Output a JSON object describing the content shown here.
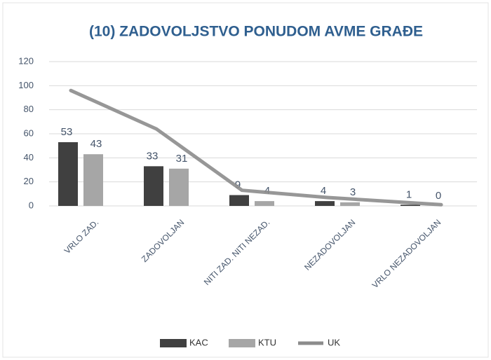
{
  "chart_data": {
    "type": "bar",
    "title": "(10) ZADOVOLJSTVO PONUDOM AVME GRAĐE",
    "categories": [
      "VRLO ZAD.",
      "ZADOVOLJAN",
      "NITI ZAD. NITI NEZAD.",
      "NEZADOVOLJAN",
      "VRLO NEZADOVOLJAN"
    ],
    "series": [
      {
        "name": "KAC",
        "type": "bar",
        "color": "#404040",
        "values": [
          53,
          33,
          9,
          4,
          1
        ]
      },
      {
        "name": "KTU",
        "type": "bar",
        "color": "#a6a6a6",
        "values": [
          43,
          31,
          4,
          3,
          0
        ]
      },
      {
        "name": "UK",
        "type": "line",
        "color": "#8c8c8c",
        "values": [
          96,
          64,
          13,
          7,
          1
        ]
      }
    ],
    "ylim": [
      0,
      120
    ],
    "yticks": [
      0,
      20,
      40,
      60,
      80,
      100,
      120
    ],
    "grid": true,
    "legend": "bottom"
  }
}
